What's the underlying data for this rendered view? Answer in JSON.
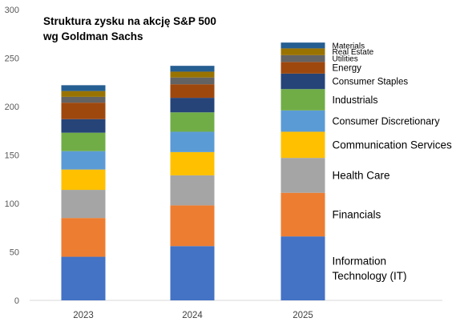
{
  "chart_data": {
    "type": "bar",
    "stacked": true,
    "title_lines": [
      "Struktura zysku na akcję S&P 500",
      "wg Goldman Sachs"
    ],
    "categories": [
      "2023",
      "2024",
      "2025"
    ],
    "ylim": [
      0,
      300
    ],
    "yticks": [
      0,
      50,
      100,
      150,
      200,
      250,
      300
    ],
    "grid": false,
    "legend": "right-of-last-bar",
    "series": [
      {
        "name": "Information Technology (IT)",
        "label_lines": [
          "Information",
          "Technology (IT)"
        ],
        "color": "#4472C4",
        "values": [
          45,
          56,
          66
        ]
      },
      {
        "name": "Financials",
        "label_lines": [
          "Financials"
        ],
        "color": "#ED7D31",
        "values": [
          40,
          42,
          45
        ]
      },
      {
        "name": "Health Care",
        "label_lines": [
          "Health Care"
        ],
        "color": "#A5A5A5",
        "values": [
          29,
          31,
          36
        ]
      },
      {
        "name": "Communication Services",
        "label_lines": [
          "Communication Services"
        ],
        "color": "#FFC000",
        "values": [
          21,
          24,
          27
        ]
      },
      {
        "name": "Consumer Discretionary",
        "label_lines": [
          "Consumer Discretionary"
        ],
        "color": "#5B9BD5",
        "values": [
          19,
          21,
          22
        ]
      },
      {
        "name": "Industrials",
        "label_lines": [
          "Industrials"
        ],
        "color": "#70AD47",
        "values": [
          19,
          20,
          22
        ]
      },
      {
        "name": "Consumer Staples",
        "label_lines": [
          "Consumer Staples"
        ],
        "color": "#264478",
        "values": [
          14,
          15,
          16
        ]
      },
      {
        "name": "Energy",
        "label_lines": [
          "Energy"
        ],
        "color": "#9E480E",
        "values": [
          17,
          14,
          12
        ]
      },
      {
        "name": "Utilities",
        "label_lines": [
          "Utilities"
        ],
        "color": "#636363",
        "values": [
          6,
          7,
          7
        ]
      },
      {
        "name": "Real Estate",
        "label_lines": [
          "Real Estate"
        ],
        "color": "#997300",
        "values": [
          6,
          6,
          7
        ]
      },
      {
        "name": "Materials",
        "label_lines": [
          "Materials"
        ],
        "color": "#255E91",
        "values": [
          6,
          6,
          6
        ]
      }
    ]
  }
}
